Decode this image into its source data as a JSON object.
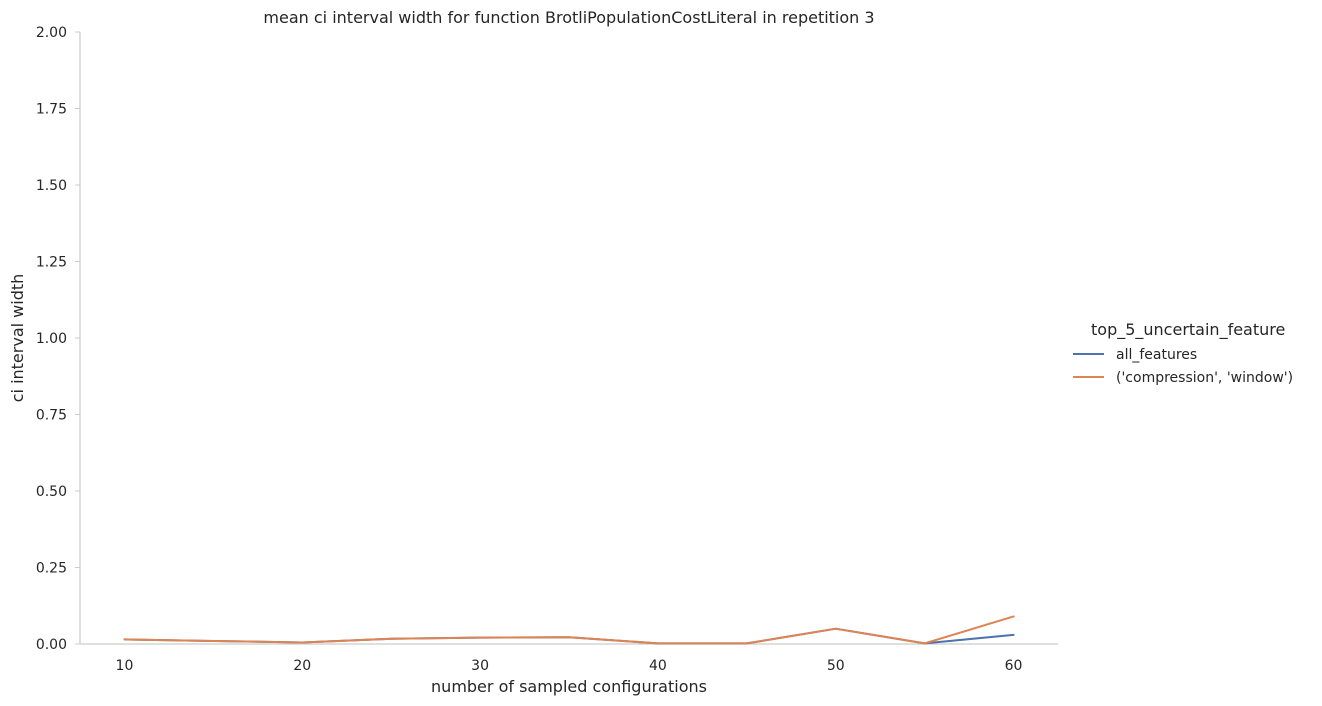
{
  "chart_data": {
    "type": "line",
    "title": "mean ci interval width for function BrotliPopulationCostLiteral in repetition 3",
    "xlabel": "number of sampled configurations",
    "ylabel": "ci interval width",
    "xlim": [
      7.5,
      62.5
    ],
    "ylim": [
      0,
      2.0
    ],
    "xticks": [
      10,
      20,
      30,
      40,
      50,
      60
    ],
    "xtick_labels": [
      "10",
      "20",
      "30",
      "40",
      "50",
      "60"
    ],
    "yticks": [
      0,
      0.25,
      0.5,
      0.75,
      1.0,
      1.25,
      1.5,
      1.75,
      2.0
    ],
    "ytick_labels": [
      "0.00",
      "0.25",
      "0.50",
      "0.75",
      "1.00",
      "1.25",
      "1.50",
      "1.75",
      "2.00"
    ],
    "grid": false,
    "legend_position": "center-right",
    "legend_title": "top_5_uncertain_feature",
    "x": [
      10,
      15,
      20,
      25,
      30,
      35,
      40,
      45,
      50,
      55,
      60
    ],
    "series": [
      {
        "name": "all_features",
        "color": "#4c72b0",
        "values": [
          0.015,
          0.01,
          0.005,
          0.017,
          0.021,
          0.022,
          0.002,
          0.002,
          0.05,
          0.002,
          0.03
        ]
      },
      {
        "name": "('compression', 'window')",
        "color": "#dd8452",
        "values": [
          0.015,
          0.01,
          0.005,
          0.017,
          0.021,
          0.022,
          0.002,
          0.002,
          0.05,
          0.002,
          0.09
        ]
      }
    ]
  }
}
